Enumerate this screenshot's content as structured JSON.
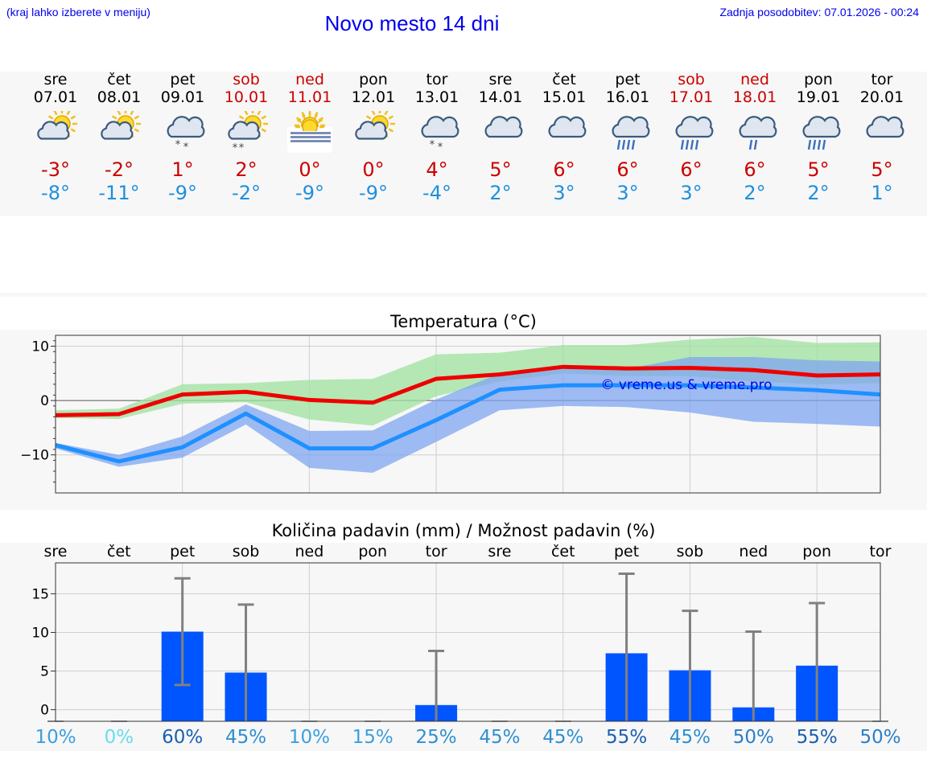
{
  "header": {
    "menu_hint": "(kraj lahko izberete v meniju)",
    "title": "Novo mesto 14 dni",
    "updated": "Zadnja posodobitev: 07.01.2026 - 00:24"
  },
  "days": [
    {
      "name": "sre",
      "date": "07.01",
      "weekend": false,
      "icon": "sun-cloud-icon",
      "max": "-3°",
      "min": "-8°"
    },
    {
      "name": "čet",
      "date": "08.01",
      "weekend": false,
      "icon": "sun-cloud-icon",
      "max": "-2°",
      "min": "-11°"
    },
    {
      "name": "pet",
      "date": "09.01",
      "weekend": false,
      "icon": "cloud-snow-icon",
      "max": "1°",
      "min": "-9°"
    },
    {
      "name": "sob",
      "date": "10.01",
      "weekend": true,
      "icon": "sun-cloud-snow-icon",
      "max": "2°",
      "min": "-2°"
    },
    {
      "name": "ned",
      "date": "11.01",
      "weekend": true,
      "icon": "sun-fog-icon",
      "max": "0°",
      "min": "-9°"
    },
    {
      "name": "pon",
      "date": "12.01",
      "weekend": false,
      "icon": "sun-cloud-icon",
      "max": "0°",
      "min": "-9°"
    },
    {
      "name": "tor",
      "date": "13.01",
      "weekend": false,
      "icon": "cloud-snow-icon",
      "max": "4°",
      "min": "-4°"
    },
    {
      "name": "sre",
      "date": "14.01",
      "weekend": false,
      "icon": "cloud-icon",
      "max": "5°",
      "min": "2°"
    },
    {
      "name": "čet",
      "date": "15.01",
      "weekend": false,
      "icon": "cloud-icon",
      "max": "6°",
      "min": "3°"
    },
    {
      "name": "pet",
      "date": "16.01",
      "weekend": false,
      "icon": "cloud-rain-icon",
      "max": "6°",
      "min": "3°"
    },
    {
      "name": "sob",
      "date": "17.01",
      "weekend": true,
      "icon": "cloud-rain-icon",
      "max": "6°",
      "min": "3°"
    },
    {
      "name": "ned",
      "date": "18.01",
      "weekend": true,
      "icon": "cloud-light-rain-icon",
      "max": "6°",
      "min": "2°"
    },
    {
      "name": "pon",
      "date": "19.01",
      "weekend": false,
      "icon": "cloud-rain-icon",
      "max": "5°",
      "min": "2°"
    },
    {
      "name": "tor",
      "date": "20.01",
      "weekend": false,
      "icon": "cloud-icon",
      "max": "5°",
      "min": "1°"
    }
  ],
  "chart_data": [
    {
      "type": "line",
      "title": "Temperatura (°C)",
      "watermark": "© vreme.us & vreme.pro",
      "x": [
        0,
        1,
        2,
        3,
        4,
        5,
        6,
        7,
        8,
        9,
        10,
        11,
        12,
        13
      ],
      "ylim": [
        -17,
        12
      ],
      "yticks": [
        10,
        0,
        -10
      ],
      "ytick_labels": [
        "10",
        "0",
        "−10"
      ],
      "series": [
        {
          "name": "max",
          "color": "#ee0000",
          "values": [
            -2.7,
            -2.5,
            1.1,
            1.6,
            0.1,
            -0.4,
            4.0,
            4.8,
            6.2,
            5.9,
            6.0,
            5.6,
            4.6,
            4.8
          ],
          "band_low": [
            -3.2,
            -3.4,
            -0.6,
            -0.3,
            -3.5,
            -4.6,
            0.8,
            3.5,
            5.0,
            4.5,
            4.5,
            3.5,
            3.0,
            3.2
          ],
          "band_high": [
            -1.8,
            -1.5,
            3.0,
            3.2,
            3.8,
            4.0,
            8.5,
            8.8,
            10.2,
            10.2,
            11.2,
            11.7,
            10.6,
            10.7
          ],
          "band_color": "#9ee29e"
        },
        {
          "name": "min",
          "color": "#1e90ff",
          "values": [
            -8.2,
            -11.2,
            -8.6,
            -2.4,
            -8.8,
            -8.8,
            -3.6,
            2.0,
            2.8,
            2.8,
            2.8,
            2.4,
            1.9,
            1.1
          ],
          "band_low": [
            -8.8,
            -12.2,
            -10.5,
            -4.4,
            -12.4,
            -13.3,
            -7.6,
            -1.8,
            -1.0,
            -1.2,
            -2.2,
            -3.9,
            -4.3,
            -4.8
          ],
          "band_high": [
            -7.8,
            -10.0,
            -6.6,
            -0.7,
            -5.6,
            -5.5,
            0.2,
            5.0,
            6.0,
            5.8,
            8.0,
            8.0,
            7.4,
            7.2
          ],
          "band_color": "#7fa6f0"
        }
      ]
    },
    {
      "type": "bar",
      "title": "Količina padavin (mm) / Možnost padavin (%)",
      "categories": [
        "sre",
        "čet",
        "pet",
        "sob",
        "ned",
        "pon",
        "tor",
        "sre",
        "čet",
        "pet",
        "sob",
        "ned",
        "pon",
        "tor"
      ],
      "ylim": [
        -1.5,
        19
      ],
      "yticks": [
        15,
        10,
        5,
        0
      ],
      "ytick_labels": [
        "15",
        "10",
        "5",
        "0"
      ],
      "values": [
        0,
        0,
        10.1,
        4.8,
        0,
        0,
        0.6,
        0,
        0,
        7.3,
        5.1,
        0.3,
        5.7,
        0
      ],
      "err_low": [
        0,
        0,
        3.2,
        0,
        0,
        0,
        0,
        0,
        0,
        0,
        0,
        0,
        0,
        0
      ],
      "err_high": [
        0,
        0,
        17.0,
        13.6,
        0,
        0,
        7.6,
        0,
        0,
        17.6,
        12.8,
        10.1,
        13.8,
        0
      ],
      "probability": [
        "10%",
        "0%",
        "60%",
        "45%",
        "10%",
        "15%",
        "25%",
        "45%",
        "45%",
        "55%",
        "45%",
        "50%",
        "55%",
        "50%"
      ],
      "probability_colors": [
        "#3aa0dd",
        "#66ddee",
        "#1a5fb0",
        "#2f8fd0",
        "#3aa0dd",
        "#3aa0dd",
        "#2f8fd0",
        "#2f8fd0",
        "#2f8fd0",
        "#1a5fb0",
        "#2f8fd0",
        "#2a7fc8",
        "#1a5fb0",
        "#2a7fc8"
      ],
      "bar_color": "#0055ff"
    }
  ]
}
